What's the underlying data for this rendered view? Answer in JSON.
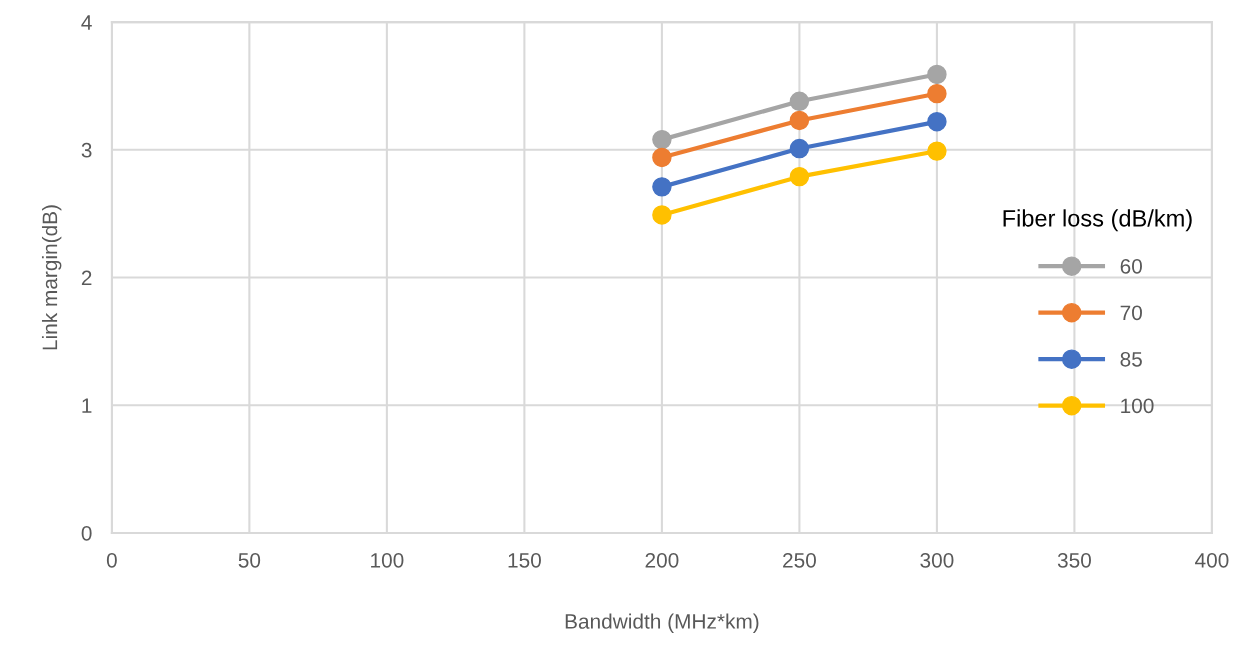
{
  "chart_data": {
    "type": "line",
    "xlabel": "Bandwidth (MHz*km)",
    "ylabel": "Link margin(dB)",
    "legend_title": "Fiber loss (dB/km)",
    "x": [
      200,
      250,
      300
    ],
    "series": [
      {
        "name": "60",
        "color": "#a5a5a5",
        "values": [
          3.08,
          3.38,
          3.59
        ]
      },
      {
        "name": "70",
        "color": "#ed7d31",
        "values": [
          2.94,
          3.23,
          3.44
        ]
      },
      {
        "name": "85",
        "color": "#4472c4",
        "values": [
          2.71,
          3.01,
          3.22
        ]
      },
      {
        "name": "100",
        "color": "#ffc000",
        "values": [
          2.49,
          2.79,
          2.99
        ]
      }
    ],
    "xlim": [
      0,
      400
    ],
    "xticks": [
      0,
      50,
      100,
      150,
      200,
      250,
      300,
      350,
      400
    ],
    "ylim": [
      0,
      4
    ],
    "yticks": [
      0,
      1,
      2,
      3,
      4
    ],
    "grid": true,
    "legend": "right",
    "marker": "circle",
    "line_style": "solid"
  }
}
